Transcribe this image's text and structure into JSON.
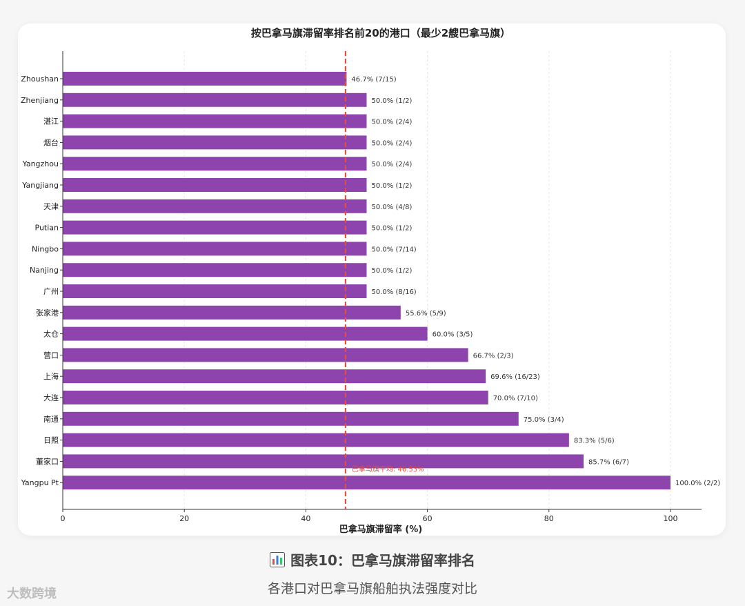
{
  "chart_data": {
    "type": "bar",
    "orientation": "horizontal",
    "title": "按巴拿马旗滞留率排名前20的港口（最少2艘巴拿马旗）",
    "xlabel": "巴拿马旗滞留率 (%)",
    "ylabel": "",
    "xlim": [
      0,
      105
    ],
    "xticks": [
      0,
      20,
      40,
      60,
      80,
      100
    ],
    "grid": "vertical",
    "bar_color": "#8e44ad",
    "reference_line": {
      "value": 46.53,
      "label": "巴拿马旗平均: 46.53%",
      "color": "#e74c3c"
    },
    "categories": [
      "Zhoushan",
      "Zhenjiang",
      "湛江",
      "烟台",
      "Yangzhou",
      "Yangjiang",
      "天津",
      "Putian",
      "Ningbo",
      "Nanjing",
      "广州",
      "张家港",
      "太仓",
      "营口",
      "上海",
      "大连",
      "南通",
      "日照",
      "董家口",
      "Yangpu Pt"
    ],
    "values": [
      46.7,
      50.0,
      50.0,
      50.0,
      50.0,
      50.0,
      50.0,
      50.0,
      50.0,
      50.0,
      50.0,
      55.6,
      60.0,
      66.7,
      69.6,
      70.0,
      75.0,
      83.3,
      85.7,
      100.0
    ],
    "data_labels": [
      "46.7% (7/15)",
      "50.0% (1/2)",
      "50.0% (2/4)",
      "50.0% (2/4)",
      "50.0% (2/4)",
      "50.0% (1/2)",
      "50.0% (4/8)",
      "50.0% (1/2)",
      "50.0% (7/14)",
      "50.0% (1/2)",
      "50.0% (8/16)",
      "55.6% (5/9)",
      "60.0% (3/5)",
      "66.7% (2/3)",
      "69.6% (16/23)",
      "70.0% (7/10)",
      "75.0% (3/4)",
      "83.3% (5/6)",
      "85.7% (6/7)",
      "100.0% (2/2)"
    ]
  },
  "caption": {
    "icon": "bar-chart-icon",
    "title": "图表10：巴拿马旗滞留率排名",
    "subtitle": "各港口对巴拿马旗船舶执法强度对比"
  },
  "watermark": "大数跨境"
}
